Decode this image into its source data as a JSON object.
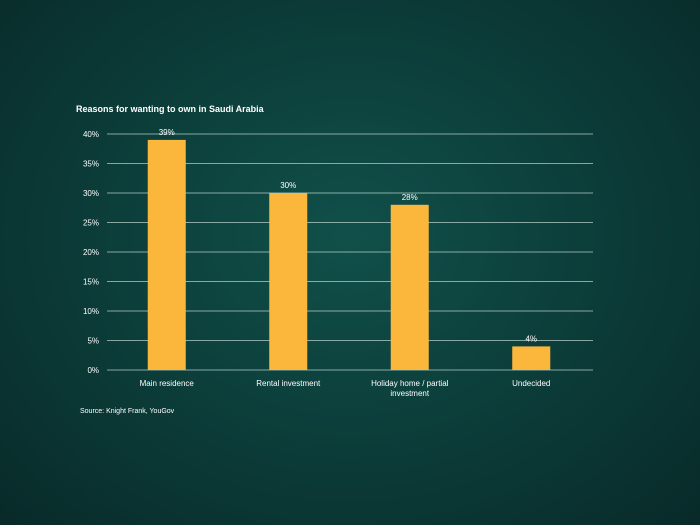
{
  "chart_data": {
    "type": "bar",
    "title": "Reasons for wanting to own in Saudi Arabia",
    "categories": [
      "Main residence",
      "Rental investment",
      "Holiday home / partial investment",
      "Undecided"
    ],
    "category_lines": [
      [
        "Main residence"
      ],
      [
        "Rental investment"
      ],
      [
        "Holiday home / partial",
        "investment"
      ],
      [
        "Undecided"
      ]
    ],
    "values": [
      39,
      30,
      28,
      4
    ],
    "data_labels": [
      "39%",
      "30%",
      "28%",
      "4%"
    ],
    "ylim": [
      0,
      40
    ],
    "yticks": [
      0,
      5,
      10,
      15,
      20,
      25,
      30,
      35,
      40
    ],
    "ytick_labels": [
      "0%",
      "5%",
      "10%",
      "15%",
      "20%",
      "25%",
      "30%",
      "35%",
      "40%"
    ],
    "xlabel": "",
    "ylabel": "",
    "grid": true,
    "bar_color": "#fbb73c",
    "background_color": "#0c3f3b",
    "source": "Source: Knight Frank, YouGov"
  }
}
